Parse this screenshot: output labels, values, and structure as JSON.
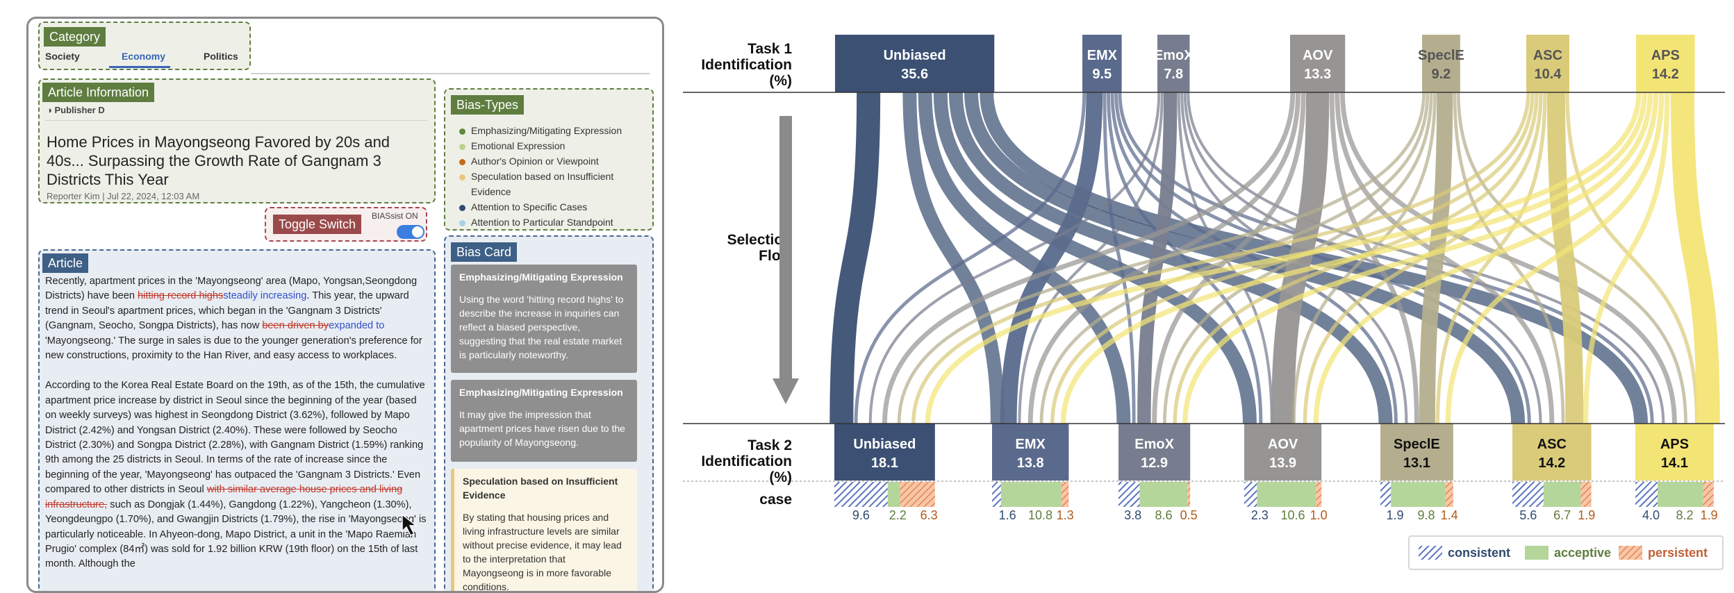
{
  "ui": {
    "category": {
      "title": "Category",
      "tabs": [
        "Society",
        "Economy",
        "Politics"
      ],
      "active_tab": "Economy"
    },
    "article_info": {
      "title": "Article Information",
      "publisher": "Publisher D",
      "headline_1": "Home Prices in Mayongseong Favored by 20s and",
      "headline_2": "40s... Surpassing the Growth Rate of Gangnam 3",
      "headline_3": "Districts This Year",
      "byline": "Reporter Kim | Jul 22, 2024, 12:03 AM"
    },
    "bias_types": {
      "title": "Bias-Types",
      "items": [
        {
          "label": "Emphasizing/Mitigating Expression",
          "color": "#5e8a3c"
        },
        {
          "label": "Emotional Expression",
          "color": "#b8d48e"
        },
        {
          "label": "Author's Opinion or Viewpoint",
          "color": "#c46a1a"
        },
        {
          "label": "Speculation based on Insufficient",
          "label2": "Evidence",
          "color": "#e8c87a"
        },
        {
          "label": "Attention to Specific Cases",
          "color": "#2f4b6e"
        },
        {
          "label": "Attention to Particular Standpoint",
          "color": "#a9d2e6"
        }
      ]
    },
    "toggle": {
      "label": "Toggle Switch",
      "caption": "BIASsist ON"
    },
    "article": {
      "title": "Article",
      "p1": [
        {
          "t": "Recently, apartment prices in the 'Mayongseong' area (Mapo, Yongsan,"
        },
        {
          "t": "Seongdong Districts) have been "
        },
        {
          "s": "hitting record highs"
        },
        {
          "i": "steadily increasing"
        },
        {
          "t": ". This year, the upward trend in Seoul's apartment prices, which began in the 'Gangnam 3 Districts' (Gangnam, Seocho, Songpa Districts), has now "
        },
        {
          "s": "been driven by"
        },
        {
          "i": "expanded to"
        },
        {
          "t": " 'Mayongseong.' The surge in sales is due to the younger generation's preference for new constructions, proximity to the Han River, and easy access to workplaces."
        }
      ],
      "p2a": "According to the Korea Real Estate Board on the 19th, as of the 15th, the cumulative apartment price increase by district in Seoul since the beginning of the year (based on weekly surveys) was highest in Seongdong District (3.62%), followed by Mapo District (2.42%) and Yongsan District (2.40%). These were followed by Seocho District (2.30%) and Songpa District (2.28%), with Gangnam District (1.59%) ranking 9th among the 25 districts in Seoul. In terms of the rate of increase since the beginning of the year, 'Mayongseong' has outpaced the 'Gangnam 3 Districts.' Even compared to other districts in Seoul ",
      "p2s": "with similar average house prices and living infrastructure,",
      "p2b": " such as Dongjak (1.44%), Gangdong (1.22%), Yangcheon (1.30%), Yeongdeungpo (1.70%), and Gwangjin Districts (1.79%), the rise in 'Mayongseong' is particularly noticeable. In Ahyeon-dong, Mapo District, a unit in the 'Mapo Raemian Prugio' complex (84㎡) was sold for 1.92 billion KRW (19th floor) on the 15th of last month. Although the"
    },
    "bias_card": {
      "title": "Bias Card",
      "cards": [
        {
          "title": "Emphasizing/Mitigating Expression",
          "body": "Using the word 'hitting record highs' to describe the increase in inquiries can reflect a biased perspective, suggesting that the real estate market is particularly noteworthy."
        },
        {
          "title": "Emphasizing/Mitigating Expression",
          "body": "It may give the impression that apartment prices have risen due to the popularity of Mayongseong."
        },
        {
          "title": "Speculation based on Insufficient Evidence",
          "body": "By stating that housing prices and living infrastructure levels are similar without precise evidence, it may lead to the interpretation that Mayongseong is in more favorable conditions."
        }
      ]
    }
  },
  "chart_data": {
    "type": "sankey",
    "labels": {
      "task1": [
        "Task 1",
        "Identification",
        "(%)"
      ],
      "flow": [
        "Selection",
        "Flow"
      ],
      "task2": [
        "Task 2",
        "Identification",
        "(%)"
      ],
      "case": "case"
    },
    "categories": [
      "Unbiased",
      "EMX",
      "EmoX",
      "AOV",
      "SpeclE",
      "ASC",
      "APS"
    ],
    "colors": [
      "#3b5073",
      "#5a6a8c",
      "#777d8e",
      "#979594",
      "#b4ae8e",
      "#d9cb79",
      "#f3e476"
    ],
    "task1": [
      35.6,
      9.5,
      7.8,
      13.3,
      9.2,
      10.4,
      14.2
    ],
    "task1_labels": [
      "35.6",
      "9.5",
      "7.8",
      "13.3",
      "9.2",
      "10.4",
      "14.2"
    ],
    "task2": [
      18.1,
      13.8,
      12.9,
      13.9,
      13.1,
      14.2,
      14.1
    ],
    "task2_labels": [
      "18.1",
      "13.8",
      "12.9",
      "13.9",
      "13.1",
      "14.2",
      "14.1"
    ],
    "case_series": [
      "consistent",
      "acceptive",
      "persistent"
    ],
    "case_colors": [
      "#5b74c0",
      "#b4d69a",
      "#e8925a"
    ],
    "case": [
      [
        9.6,
        2.2,
        6.3
      ],
      [
        1.6,
        10.8,
        1.3
      ],
      [
        3.8,
        8.6,
        0.5
      ],
      [
        2.3,
        10.6,
        1.0
      ],
      [
        1.9,
        9.8,
        1.4
      ],
      [
        5.6,
        6.7,
        1.9
      ],
      [
        4.0,
        8.2,
        1.9
      ]
    ],
    "case_labels": [
      [
        "9.6",
        "2.2",
        "6.3"
      ],
      [
        "1.6",
        "10.8",
        "1.3"
      ],
      [
        "3.8",
        "8.6",
        "0.5"
      ],
      [
        "2.3",
        "10.6",
        "1.0"
      ],
      [
        "1.9",
        "9.8",
        "1.4"
      ],
      [
        "5.6",
        "6.7",
        "1.9"
      ],
      [
        "4.0",
        "8.2",
        "1.9"
      ]
    ],
    "legend": [
      "consistent",
      "acceptive",
      "persistent"
    ]
  }
}
